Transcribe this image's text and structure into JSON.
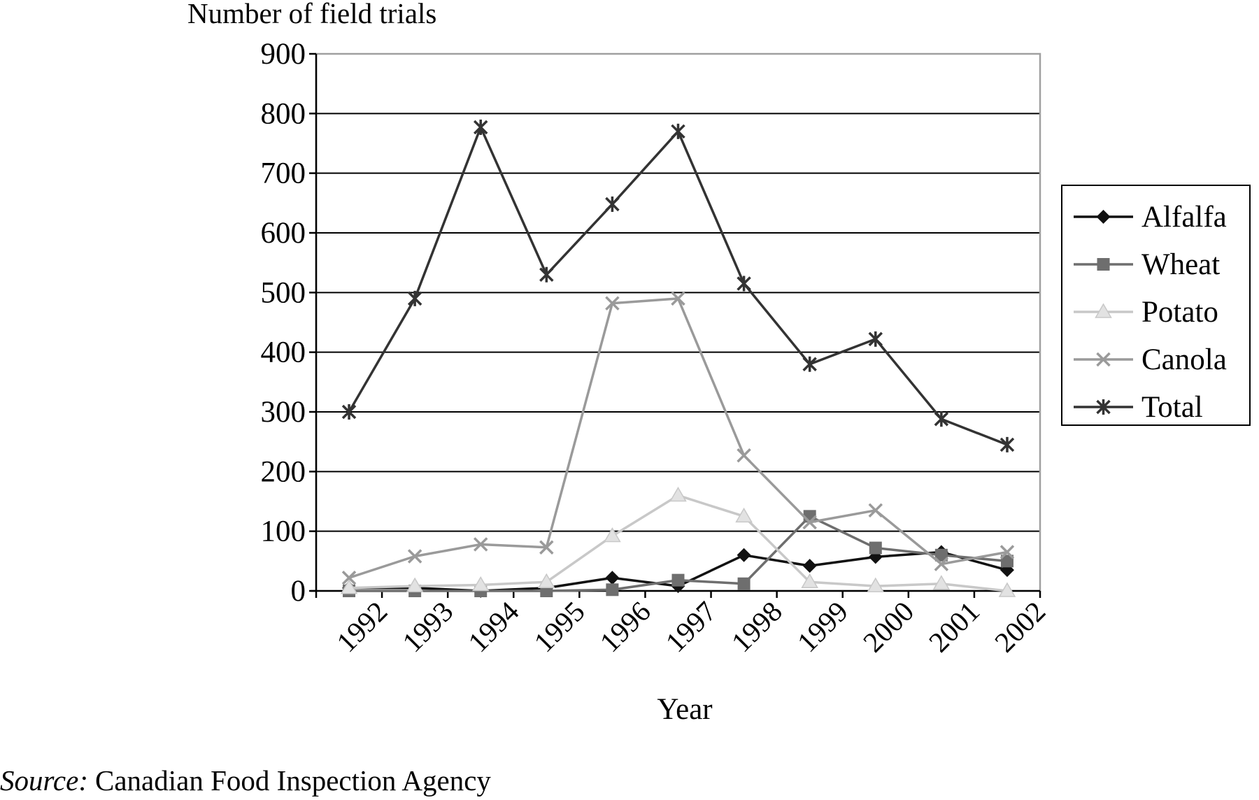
{
  "chart_data": {
    "type": "line",
    "ylabel": "Number of field trials",
    "xlabel": "Year",
    "ylim": [
      0,
      900
    ],
    "yticks": [
      0,
      100,
      200,
      300,
      400,
      500,
      600,
      700,
      800,
      900
    ],
    "categories": [
      "1992",
      "1993",
      "1994",
      "1995",
      "1996",
      "1997",
      "1998",
      "1999",
      "2000",
      "2001",
      "2002"
    ],
    "grid": true,
    "legend_position": "right",
    "series": [
      {
        "name": "Alfalfa",
        "marker": "diamond",
        "color": "#111111",
        "values": [
          5,
          5,
          0,
          5,
          22,
          8,
          60,
          42,
          57,
          65,
          35
        ]
      },
      {
        "name": "Wheat",
        "marker": "square",
        "color": "#6e6e6e",
        "values": [
          0,
          0,
          0,
          0,
          2,
          18,
          12,
          125,
          72,
          60,
          50
        ]
      },
      {
        "name": "Potato",
        "marker": "triangle",
        "color": "#c8c8c8",
        "values": [
          5,
          8,
          10,
          15,
          92,
          160,
          125,
          15,
          8,
          12,
          0
        ]
      },
      {
        "name": "Canola",
        "marker": "x",
        "color": "#9a9a9a",
        "values": [
          22,
          58,
          78,
          73,
          482,
          490,
          227,
          115,
          135,
          45,
          65
        ]
      },
      {
        "name": "Total",
        "marker": "star",
        "color": "#333333",
        "values": [
          300,
          490,
          777,
          530,
          648,
          770,
          515,
          380,
          422,
          288,
          245
        ]
      }
    ]
  },
  "source": {
    "prefix": "Source:",
    "text": "Canadian Food Inspection Agency"
  }
}
